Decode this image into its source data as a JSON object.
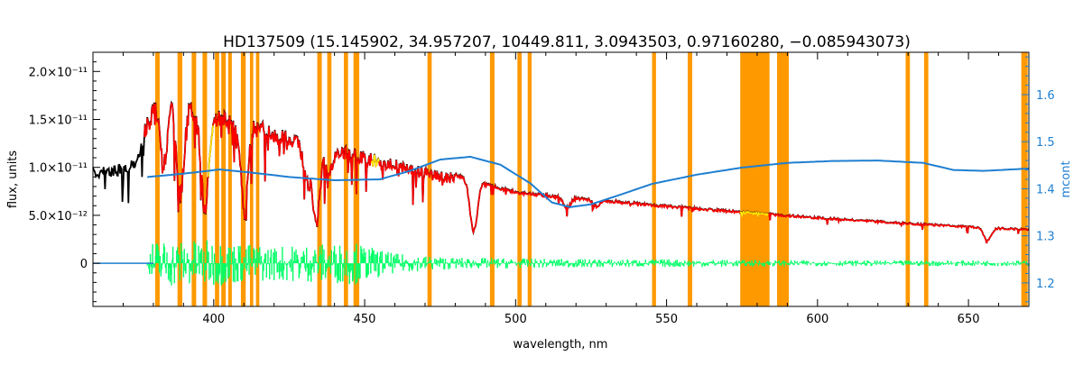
{
  "chart_data": {
    "type": "line",
    "title": "HD137509   (15.145902, 34.957207, 10449.811, 3.0943503, 0.97160280, −0.085943073)",
    "xlabel": "wavelength, nm",
    "ylabel": "flux, units",
    "y2label": "mcont",
    "xlim": [
      360,
      670
    ],
    "ylim": [
      -4.5e-12,
      2.2e-11
    ],
    "y2lim": [
      1.15,
      1.69
    ],
    "x_ticks": [
      400,
      450,
      500,
      550,
      600,
      650
    ],
    "x_tick_labels": [
      "400",
      "450",
      "500",
      "550",
      "600",
      "650"
    ],
    "y_ticks": [
      0,
      5e-12,
      1e-11,
      1.5e-11,
      2e-11
    ],
    "y_tick_labels": [
      "0",
      "5.0×10⁻¹²",
      "1.0×10⁻¹¹",
      "1.5×10⁻¹¹",
      "2.0×10⁻¹¹"
    ],
    "y2_ticks": [
      1.2,
      1.3,
      1.4,
      1.5,
      1.6
    ],
    "y2_tick_labels": [
      "1.2",
      "1.3",
      "1.4",
      "1.5",
      "1.6"
    ],
    "grid": false,
    "masked_regions": [
      [
        380.6,
        382.1
      ],
      [
        388.0,
        389.6
      ],
      [
        392.7,
        394.2
      ],
      [
        396.3,
        397.8
      ],
      [
        400.4,
        401.8
      ],
      [
        402.5,
        404.0
      ],
      [
        404.8,
        406.0
      ],
      [
        409.0,
        410.6
      ],
      [
        412.0,
        413.1
      ],
      [
        414.0,
        415.1
      ],
      [
        434.3,
        435.8
      ],
      [
        437.6,
        439.0
      ],
      [
        443.1,
        444.5
      ],
      [
        446.3,
        448.2
      ],
      [
        470.8,
        472.2
      ],
      [
        491.5,
        493.0
      ],
      [
        500.6,
        502.0
      ],
      [
        504.0,
        505.3
      ],
      [
        545.2,
        546.5
      ],
      [
        557.0,
        558.5
      ],
      [
        574.4,
        584.1
      ],
      [
        586.6,
        590.5
      ],
      [
        629.2,
        630.6
      ],
      [
        635.3,
        636.7
      ],
      [
        667.5,
        669.6
      ]
    ],
    "continuum_anchors": [
      [
        360,
        1e-11
      ],
      [
        370,
        1.03e-11
      ],
      [
        375,
        1.16e-11
      ],
      [
        378,
        1.56e-11
      ],
      [
        382,
        1.82e-11
      ],
      [
        388,
        1.79e-11
      ],
      [
        393,
        1.7e-11
      ],
      [
        400,
        1.62e-11
      ],
      [
        410,
        1.58e-11
      ],
      [
        415,
        1.49e-11
      ],
      [
        425,
        1.38e-11
      ],
      [
        440,
        1.25e-11
      ],
      [
        455,
        1.13e-11
      ],
      [
        470,
        1e-11
      ],
      [
        480,
        9.4e-12
      ],
      [
        490,
        8.5e-12
      ],
      [
        500,
        7.6e-12
      ],
      [
        515,
        7.1e-12
      ],
      [
        530,
        6.7e-12
      ],
      [
        550,
        6.1e-12
      ],
      [
        570,
        5.6e-12
      ],
      [
        590,
        5.1e-12
      ],
      [
        610,
        4.65e-12
      ],
      [
        630,
        4.25e-12
      ],
      [
        650,
        3.9e-12
      ],
      [
        670,
        3.6e-12
      ]
    ],
    "absorption_lines": [
      [
        383.5,
        0.35
      ],
      [
        388.9,
        0.55
      ],
      [
        397.0,
        0.6
      ],
      [
        410.2,
        0.6
      ],
      [
        434.0,
        0.6
      ],
      [
        486.1,
        0.6
      ],
      [
        656.3,
        0.35
      ],
      [
        430.8,
        0.3
      ],
      [
        438.3,
        0.2
      ],
      [
        517.0,
        0.15
      ],
      [
        527.0,
        0.1
      ]
    ],
    "mcont_points": [
      [
        378,
        1.425
      ],
      [
        390,
        1.432
      ],
      [
        402,
        1.441
      ],
      [
        413,
        1.434
      ],
      [
        425,
        1.425
      ],
      [
        440,
        1.418
      ],
      [
        455,
        1.42
      ],
      [
        465,
        1.438
      ],
      [
        475,
        1.462
      ],
      [
        485,
        1.468
      ],
      [
        495,
        1.451
      ],
      [
        505,
        1.411
      ],
      [
        512,
        1.371
      ],
      [
        518,
        1.361
      ],
      [
        525,
        1.367
      ],
      [
        535,
        1.388
      ],
      [
        545,
        1.41
      ],
      [
        560,
        1.43
      ],
      [
        575,
        1.445
      ],
      [
        590,
        1.455
      ],
      [
        605,
        1.459
      ],
      [
        620,
        1.46
      ],
      [
        635,
        1.455
      ],
      [
        645,
        1.44
      ],
      [
        655,
        1.438
      ],
      [
        670,
        1.443
      ]
    ],
    "residual_amplitude": [
      [
        360,
        2e-13
      ],
      [
        378,
        3e-13
      ],
      [
        380,
        2.5e-12
      ],
      [
        400,
        2.4e-12
      ],
      [
        420,
        1.8e-12
      ],
      [
        447,
        2.2e-12
      ],
      [
        460,
        1e-12
      ],
      [
        480,
        6e-13
      ],
      [
        520,
        4.5e-13
      ],
      [
        560,
        4e-13
      ],
      [
        600,
        3e-13
      ],
      [
        670,
        3e-13
      ]
    ],
    "series": [
      {
        "color": "#000000",
        "style": "observed-spectrum"
      },
      {
        "color": "#ff0000",
        "style": "model-fit"
      },
      {
        "color": "#ffee00",
        "style": "fit-highlight"
      },
      {
        "color": "#00ff66",
        "style": "residuals"
      },
      {
        "color": "#1f7fd1",
        "style": "mcont",
        "axis": "right"
      },
      {
        "color": "#ff9900",
        "style": "masked-regions"
      }
    ]
  }
}
